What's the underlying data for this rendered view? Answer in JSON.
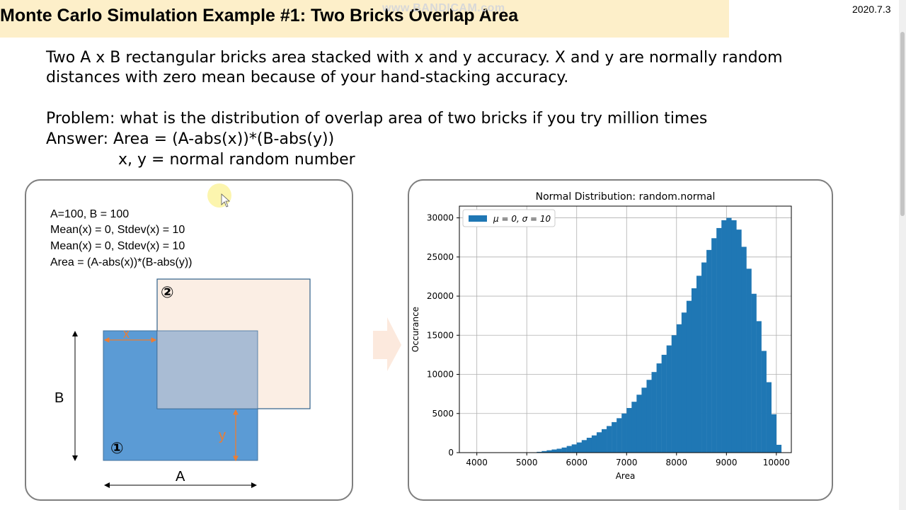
{
  "header": {
    "title": "Monte Carlo Simulation Example #1: Two Bricks Overlap Area",
    "watermark": "www.BANDICAM.com",
    "date": "2020.7.3"
  },
  "description": {
    "line1": "Two A x B rectangular bricks area stacked with x and y accuracy. X and y are normally random",
    "line2": "distances with zero mean because of your hand-stacking accuracy.",
    "problem": "Problem: what is the distribution of overlap area of two bricks if you try million times",
    "answer": "Answer:   Area = (A-abs(x))*(B-abs(y))",
    "answer2": "x, y =   normal random number"
  },
  "diagram": {
    "params": [
      "A=100, B = 100",
      "Mean(x) = 0, Stdev(x) = 10",
      "Mean(x) = 0, Stdev(x) = 10",
      "Area = (A-abs(x))*(B-abs(y))"
    ],
    "label_b": "B",
    "label_a": "A",
    "label_x": "x",
    "label_y": "y",
    "brick1": "①",
    "brick2": "②",
    "colors": {
      "brick1": "#5b9bd5",
      "brick2": "#fbeee4",
      "overlap": "#a9bcd4",
      "dimension": "#ed7d31"
    }
  },
  "chart_data": {
    "type": "bar",
    "title": "Normal Distribution: random.normal",
    "xlabel": "Area",
    "ylabel": "Occurance",
    "legend": "μ = 0, σ = 10",
    "legend_placement": "top-left",
    "grid": true,
    "color": "#1f77b4",
    "xlim": [
      3650,
      10300
    ],
    "ylim": [
      0,
      31500
    ],
    "xticks": [
      4000,
      5000,
      6000,
      7000,
      8000,
      9000,
      10000
    ],
    "yticks": [
      0,
      5000,
      10000,
      15000,
      20000,
      25000,
      30000
    ],
    "bin_width": 100,
    "bins": [
      [
        5200,
        100
      ],
      [
        5300,
        200
      ],
      [
        5400,
        300
      ],
      [
        5500,
        400
      ],
      [
        5600,
        500
      ],
      [
        5700,
        650
      ],
      [
        5800,
        850
      ],
      [
        5900,
        1050
      ],
      [
        6000,
        1300
      ],
      [
        6100,
        1600
      ],
      [
        6200,
        1900
      ],
      [
        6300,
        2200
      ],
      [
        6400,
        2600
      ],
      [
        6500,
        3000
      ],
      [
        6600,
        3400
      ],
      [
        6700,
        3900
      ],
      [
        6800,
        4400
      ],
      [
        6900,
        5000
      ],
      [
        7000,
        5700
      ],
      [
        7100,
        6500
      ],
      [
        7200,
        7400
      ],
      [
        7300,
        8300
      ],
      [
        7400,
        9300
      ],
      [
        7500,
        10300
      ],
      [
        7600,
        11400
      ],
      [
        7700,
        12500
      ],
      [
        7800,
        13700
      ],
      [
        7900,
        15000
      ],
      [
        8000,
        16400
      ],
      [
        8100,
        17900
      ],
      [
        8200,
        19400
      ],
      [
        8300,
        21000
      ],
      [
        8400,
        22600
      ],
      [
        8500,
        24300
      ],
      [
        8600,
        25900
      ],
      [
        8700,
        27400
      ],
      [
        8800,
        28700
      ],
      [
        8900,
        29700
      ],
      [
        9000,
        30000
      ],
      [
        9100,
        29700
      ],
      [
        9200,
        28500
      ],
      [
        9300,
        26300
      ],
      [
        9400,
        23500
      ],
      [
        9500,
        20300
      ],
      [
        9600,
        16800
      ],
      [
        9700,
        13000
      ],
      [
        9800,
        9000
      ],
      [
        9900,
        4900
      ],
      [
        10000,
        1000
      ]
    ]
  }
}
